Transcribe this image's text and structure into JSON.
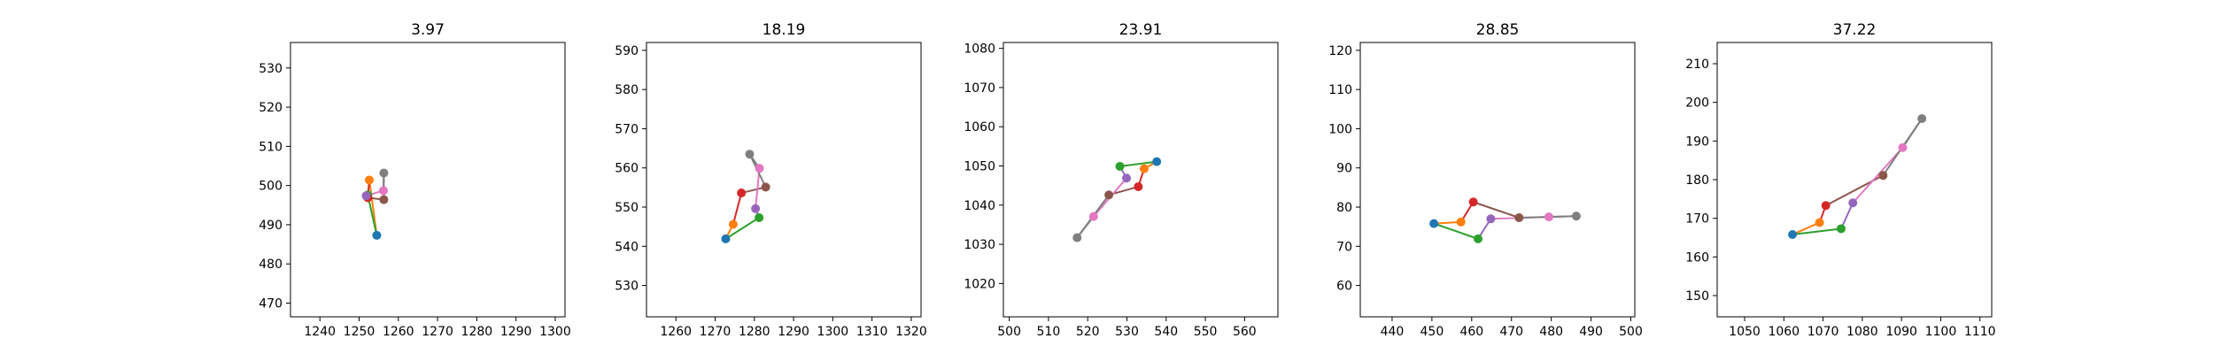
{
  "chart_data": [
    {
      "type": "scatter",
      "title": "3.97",
      "xlim": [
        1232.5,
        1302.5
      ],
      "ylim": [
        466.5,
        536.5
      ],
      "xticks": [
        1240,
        1250,
        1260,
        1270,
        1280,
        1290,
        1300
      ],
      "yticks": [
        470,
        480,
        490,
        500,
        510,
        520,
        530
      ],
      "points": [
        {
          "x": 1254.5,
          "y": 487.3,
          "color": "#1f77b4"
        },
        {
          "x": 1252.6,
          "y": 501.4,
          "color": "#ff7f0e"
        },
        {
          "x": 1252.2,
          "y": 497.6,
          "color": "#2ca02c"
        },
        {
          "x": 1252.2,
          "y": 496.9,
          "color": "#d62728"
        },
        {
          "x": 1251.8,
          "y": 497.4,
          "color": "#9467bd"
        },
        {
          "x": 1256.3,
          "y": 496.4,
          "color": "#8c564b"
        },
        {
          "x": 1256.2,
          "y": 498.7,
          "color": "#e377c2"
        },
        {
          "x": 1256.3,
          "y": 503.2,
          "color": "#7f7f7f"
        }
      ]
    },
    {
      "type": "scatter",
      "title": "18.19",
      "xlim": [
        1252.5,
        1322.5
      ],
      "ylim": [
        522,
        592
      ],
      "xticks": [
        1260,
        1270,
        1280,
        1290,
        1300,
        1310,
        1320
      ],
      "yticks": [
        530,
        540,
        550,
        560,
        570,
        580,
        590
      ],
      "points": [
        {
          "x": 1272.7,
          "y": 541.9,
          "color": "#1f77b4"
        },
        {
          "x": 1274.6,
          "y": 545.6,
          "color": "#ff7f0e"
        },
        {
          "x": 1281.2,
          "y": 547.3,
          "color": "#2ca02c"
        },
        {
          "x": 1276.7,
          "y": 553.6,
          "color": "#d62728"
        },
        {
          "x": 1280.3,
          "y": 549.6,
          "color": "#9467bd"
        },
        {
          "x": 1282.9,
          "y": 555.1,
          "color": "#8c564b"
        },
        {
          "x": 1281.3,
          "y": 559.9,
          "color": "#e377c2"
        },
        {
          "x": 1278.8,
          "y": 563.5,
          "color": "#7f7f7f"
        }
      ]
    },
    {
      "type": "scatter",
      "title": "23.91",
      "xlim": [
        498.5,
        568.5
      ],
      "ylim": [
        1011.5,
        1081.5
      ],
      "xticks": [
        500,
        510,
        520,
        530,
        540,
        550,
        560
      ],
      "yticks": [
        1020,
        1030,
        1040,
        1050,
        1060,
        1070,
        1080
      ],
      "points": [
        {
          "x": 537.6,
          "y": 1051.1,
          "color": "#1f77b4"
        },
        {
          "x": 534.4,
          "y": 1049.3,
          "color": "#ff7f0e"
        },
        {
          "x": 528.2,
          "y": 1049.9,
          "color": "#2ca02c"
        },
        {
          "x": 532.9,
          "y": 1044.7,
          "color": "#d62728"
        },
        {
          "x": 529.9,
          "y": 1046.9,
          "color": "#9467bd"
        },
        {
          "x": 525.4,
          "y": 1042.6,
          "color": "#8c564b"
        },
        {
          "x": 521.5,
          "y": 1037.1,
          "color": "#e377c2"
        },
        {
          "x": 517.3,
          "y": 1031.7,
          "color": "#7f7f7f"
        }
      ]
    },
    {
      "type": "scatter",
      "title": "28.85",
      "xlim": [
        432,
        501
      ],
      "ylim": [
        52,
        122
      ],
      "xticks": [
        440,
        450,
        460,
        470,
        480,
        490,
        500
      ],
      "yticks": [
        60,
        70,
        80,
        90,
        100,
        110,
        120
      ],
      "points": [
        {
          "x": 450.5,
          "y": 75.8,
          "color": "#1f77b4"
        },
        {
          "x": 457.3,
          "y": 76.2,
          "color": "#ff7f0e"
        },
        {
          "x": 461.6,
          "y": 71.9,
          "color": "#2ca02c"
        },
        {
          "x": 460.4,
          "y": 81.3,
          "color": "#d62728"
        },
        {
          "x": 464.8,
          "y": 77.0,
          "color": "#9467bd"
        },
        {
          "x": 471.9,
          "y": 77.3,
          "color": "#8c564b"
        },
        {
          "x": 479.4,
          "y": 77.5,
          "color": "#e377c2"
        },
        {
          "x": 486.3,
          "y": 77.7,
          "color": "#7f7f7f"
        }
      ]
    },
    {
      "type": "scatter",
      "title": "37.22",
      "xlim": [
        1043,
        1113
      ],
      "ylim": [
        144.5,
        215.5
      ],
      "xticks": [
        1050,
        1060,
        1070,
        1080,
        1090,
        1100,
        1110
      ],
      "yticks": [
        150,
        160,
        170,
        180,
        190,
        200,
        210
      ],
      "points": [
        {
          "x": 1062.2,
          "y": 165.8,
          "color": "#1f77b4"
        },
        {
          "x": 1069.1,
          "y": 168.9,
          "color": "#ff7f0e"
        },
        {
          "x": 1074.6,
          "y": 167.3,
          "color": "#2ca02c"
        },
        {
          "x": 1070.7,
          "y": 173.3,
          "color": "#d62728"
        },
        {
          "x": 1077.6,
          "y": 174.0,
          "color": "#9467bd"
        },
        {
          "x": 1085.3,
          "y": 181.1,
          "color": "#8c564b"
        },
        {
          "x": 1090.3,
          "y": 188.3,
          "color": "#e377c2"
        },
        {
          "x": 1095.2,
          "y": 195.8,
          "color": "#7f7f7f"
        }
      ]
    }
  ],
  "segments": [
    {
      "from": 0,
      "to": 1,
      "color": "#ff7f0e"
    },
    {
      "from": 0,
      "to": 2,
      "color": "#2ca02c"
    },
    {
      "from": 1,
      "to": 3,
      "color": "#d62728"
    },
    {
      "from": 2,
      "to": 4,
      "color": "#9467bd"
    },
    {
      "from": 3,
      "to": 5,
      "color": "#8c564b"
    },
    {
      "from": 4,
      "to": 6,
      "color": "#e377c2"
    },
    {
      "from": 5,
      "to": 7,
      "color": "#7f7f7f"
    },
    {
      "from": 6,
      "to": 7,
      "color": "#7f7f7f"
    }
  ]
}
